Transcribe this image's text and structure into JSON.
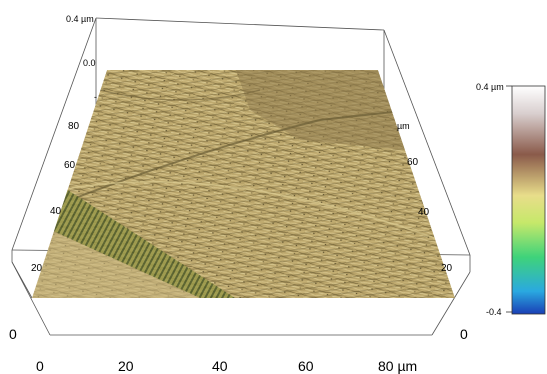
{
  "plot3d": {
    "z_top_label": "0.4 µm",
    "z_inner_label": "0.0",
    "inner_left_ticks": [
      "40",
      "60",
      "80"
    ],
    "inner_left_partial": "-",
    "inner_right_label": "µm",
    "inner_right_ticks": [
      "60",
      "40",
      "20"
    ],
    "left_edge_tick": "20",
    "x_axis": {
      "ticks": [
        "0",
        "20",
        "40",
        "60",
        "80 µm"
      ]
    },
    "origin_left": "0",
    "origin_right": "0"
  },
  "colorbar": {
    "max_label": "0.4 µm",
    "min_label": "-0.4",
    "stops": [
      "#1a3fb5",
      "#2aa9e0",
      "#3fd37a",
      "#c6e86a",
      "#e8dd8a",
      "#8a5a4a",
      "#d9cfcf",
      "#ffffff"
    ]
  },
  "surface": {
    "base_color": "#b9a46a",
    "light_color": "#d6c48c",
    "shadow_color": "#6f6238",
    "dark_patch_color": "#8e7a4d",
    "stripe_color": "#4d5a28"
  }
}
